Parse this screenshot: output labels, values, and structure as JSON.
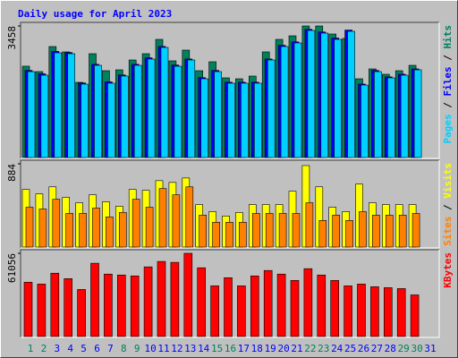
{
  "chart_data": [
    {
      "type": "bar",
      "title": "Daily usage for April 2023",
      "ylim": [
        0,
        3458
      ],
      "yticks": [
        3458
      ],
      "legend_separator": " / ",
      "series": [
        {
          "name": "Hits",
          "color": "#00805C",
          "values": [
            2400,
            2258,
            2917,
            2776,
            1976,
            2729,
            2282,
            2305,
            2564,
            2729,
            3105,
            2541,
            2823,
            2282,
            2517,
            2094,
            2070,
            2141,
            2776,
            3105,
            3199,
            3458,
            3458,
            3246,
            3129,
            2070,
            2329,
            2188,
            2282,
            2423,
            null
          ]
        },
        {
          "name": "Files",
          "color": "#0000FF",
          "values": [
            2290,
            2200,
            2790,
            2760,
            1960,
            2450,
            1990,
            2170,
            2450,
            2620,
            2920,
            2430,
            2590,
            2100,
            2290,
            1980,
            1980,
            1980,
            2590,
            2950,
            3040,
            3370,
            3300,
            3140,
            3350,
            1930,
            2290,
            2120,
            2190,
            2330,
            null
          ]
        },
        {
          "name": "Pages",
          "color": "#00D0FF",
          "values": [
            2258,
            2164,
            2752,
            2729,
            1929,
            2423,
            1953,
            2141,
            2423,
            2588,
            2893,
            2399,
            2564,
            2070,
            2258,
            1953,
            1953,
            1953,
            2564,
            2917,
            3011,
            3340,
            3270,
            3105,
            3317,
            1905,
            2258,
            2094,
            2164,
            2305,
            null
          ]
        }
      ]
    },
    {
      "type": "bar",
      "ylim": [
        0,
        884
      ],
      "yticks": [
        884
      ],
      "legend_separator": " / ",
      "series": [
        {
          "name": "Visits",
          "color": "#FFFF00",
          "values": [
            611,
            564,
            639,
            527,
            470,
            555,
            480,
            433,
            611,
            602,
            705,
            686,
            733,
            451,
            376,
            329,
            367,
            451,
            451,
            451,
            592,
            865,
            639,
            423,
            376,
            668,
            470,
            451,
            451,
            451,
            null
          ]
        },
        {
          "name": "Sites",
          "color": "#FF8000",
          "values": [
            423,
            404,
            508,
            357,
            357,
            414,
            320,
            367,
            508,
            423,
            621,
            555,
            639,
            339,
            263,
            263,
            263,
            357,
            357,
            357,
            357,
            470,
            282,
            339,
            282,
            376,
            339,
            339,
            339,
            357,
            null
          ]
        }
      ]
    },
    {
      "type": "bar",
      "ylim": [
        0,
        61056
      ],
      "yticks": [
        61056
      ],
      "series": [
        {
          "name": "KBytes",
          "color": "#FF0000",
          "values": [
            39819,
            38491,
            46454,
            42472,
            34509,
            53754,
            45790,
            45127,
            44463,
            51099,
            55081,
            54417,
            61056,
            50436,
            37164,
            43136,
            37164,
            44463,
            48445,
            45790,
            41145,
            49772,
            45127,
            41145,
            37164,
            38491,
            36500,
            35836,
            35172,
            30527,
            null
          ]
        }
      ],
      "categories": [
        "1",
        "2",
        "3",
        "4",
        "5",
        "6",
        "7",
        "8",
        "9",
        "10",
        "11",
        "12",
        "13",
        "14",
        "15",
        "16",
        "17",
        "18",
        "19",
        "20",
        "21",
        "22",
        "23",
        "24",
        "25",
        "26",
        "27",
        "28",
        "29",
        "30",
        "31"
      ],
      "category_colors": [
        "#00805C",
        "#00805C",
        "#0000FF",
        "#0000FF",
        "#0000FF",
        "#0000FF",
        "#0000FF",
        "#00805C",
        "#00805C",
        "#0000FF",
        "#0000FF",
        "#0000FF",
        "#0000FF",
        "#0000FF",
        "#00805C",
        "#00805C",
        "#0000FF",
        "#0000FF",
        "#0000FF",
        "#0000FF",
        "#0000FF",
        "#00805C",
        "#00805C",
        "#0000FF",
        "#0000FF",
        "#0000FF",
        "#0000FF",
        "#0000FF",
        "#00805C",
        "#00805C",
        "#0000FF"
      ]
    }
  ]
}
